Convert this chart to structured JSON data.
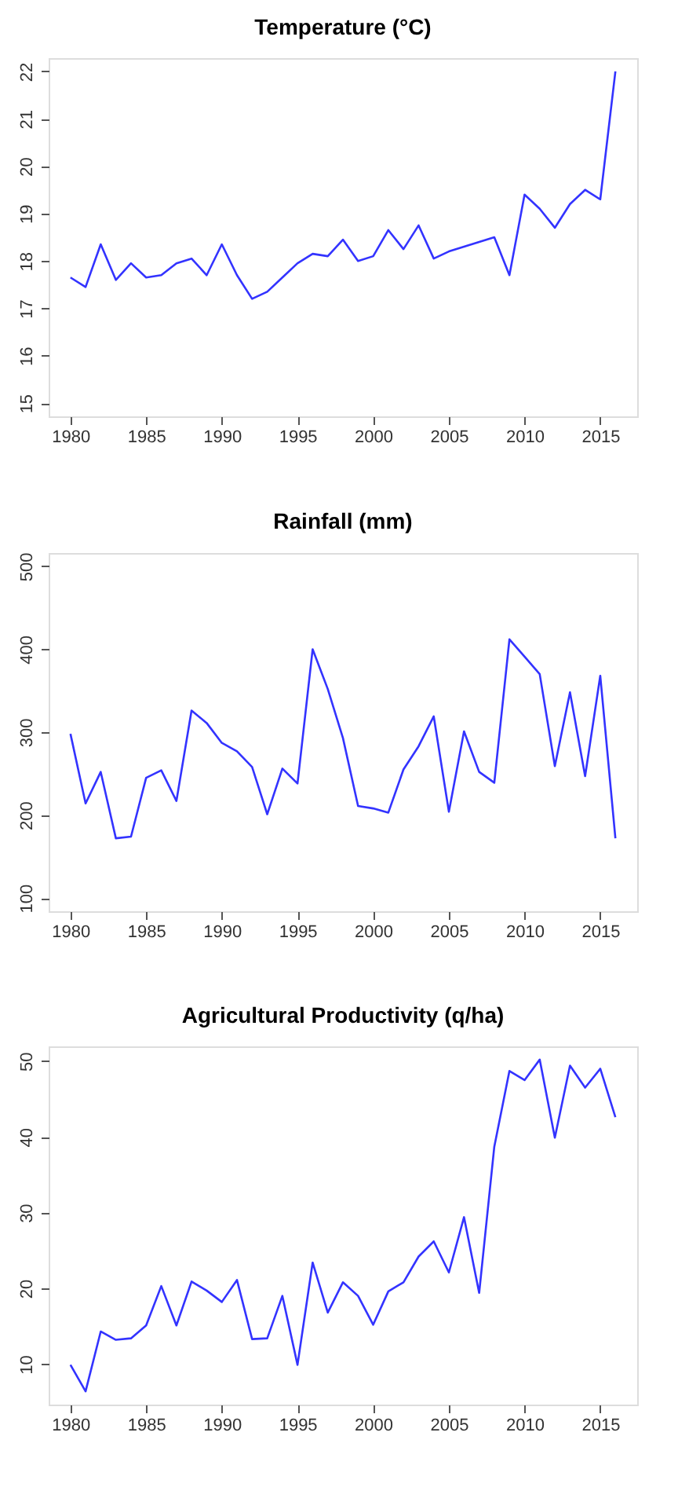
{
  "chart_data": [
    {
      "type": "line",
      "title": "Temperature (°C)",
      "x": [
        1980,
        1981,
        1982,
        1983,
        1984,
        1985,
        1986,
        1987,
        1988,
        1989,
        1990,
        1991,
        1992,
        1993,
        1994,
        1995,
        1996,
        1997,
        1998,
        1999,
        2000,
        2001,
        2002,
        2003,
        2004,
        2005,
        2006,
        2007,
        2008,
        2009,
        2010,
        2011,
        2012,
        2013,
        2014,
        2015,
        2016
      ],
      "series": [
        {
          "color": "#3333ff",
          "values": [
            17.65,
            17.45,
            18.35,
            17.6,
            17.95,
            17.65,
            17.7,
            17.95,
            18.05,
            17.7,
            18.35,
            17.7,
            17.2,
            17.35,
            17.65,
            17.95,
            18.15,
            18.1,
            18.45,
            18.0,
            18.1,
            18.65,
            18.25,
            18.75,
            18.05,
            18.2,
            18.3,
            18.4,
            18.5,
            17.7,
            19.4,
            19.1,
            18.7,
            19.2,
            19.5,
            19.3,
            22.0
          ]
        }
      ],
      "xlim": [
        1978.56,
        2017.44
      ],
      "xticks": [
        1980,
        1985,
        1990,
        1995,
        2000,
        2005,
        2010,
        2015
      ],
      "ylim": [
        14.72,
        22.28
      ],
      "yticks": [
        15,
        16,
        17,
        18,
        19,
        20,
        21,
        22
      ],
      "grid": false,
      "marker": "none",
      "line_style": "solid"
    },
    {
      "type": "line",
      "title": "Rainfall (mm)",
      "x": [
        1980,
        1981,
        1982,
        1983,
        1984,
        1985,
        1986,
        1987,
        1988,
        1989,
        1990,
        1991,
        1992,
        1993,
        1994,
        1995,
        1996,
        1997,
        1998,
        1999,
        2000,
        2001,
        2002,
        2003,
        2004,
        2005,
        2006,
        2007,
        2008,
        2009,
        2010,
        2011,
        2012,
        2013,
        2014,
        2015,
        2016
      ],
      "series": [
        {
          "color": "#3333ff",
          "values": [
            298,
            214,
            252,
            172,
            174,
            245,
            254,
            217,
            326,
            311,
            287,
            277,
            258,
            201,
            256,
            238,
            400,
            352,
            293,
            211,
            208,
            203,
            255,
            283,
            319,
            204,
            301,
            252,
            239,
            412,
            391,
            370,
            259,
            348,
            247,
            368,
            172
          ]
        }
      ],
      "xlim": [
        1978.56,
        2017.44
      ],
      "xticks": [
        1980,
        1985,
        1990,
        1995,
        2000,
        2005,
        2010,
        2015
      ],
      "ylim": [
        84,
        516
      ],
      "yticks": [
        100,
        200,
        300,
        400,
        500
      ],
      "grid": false,
      "marker": "none",
      "line_style": "solid"
    },
    {
      "type": "line",
      "title": "Agricultural Productivity (q/ha)",
      "x": [
        1980,
        1981,
        1982,
        1983,
        1984,
        1985,
        1986,
        1987,
        1988,
        1989,
        1990,
        1991,
        1992,
        1993,
        1994,
        1995,
        1996,
        1997,
        1998,
        1999,
        2000,
        2001,
        2002,
        2003,
        2004,
        2005,
        2006,
        2007,
        2008,
        2009,
        2010,
        2011,
        2012,
        2013,
        2014,
        2015,
        2016
      ],
      "series": [
        {
          "color": "#3333ff",
          "values": [
            9.9,
            6.4,
            14.3,
            13.2,
            13.4,
            15.1,
            20.3,
            15.1,
            20.9,
            19.7,
            18.2,
            21.1,
            13.3,
            13.4,
            19.0,
            9.9,
            23.4,
            16.8,
            20.8,
            19.0,
            15.2,
            19.6,
            20.8,
            24.2,
            26.2,
            22.1,
            29.4,
            19.4,
            38.7,
            48.7,
            47.5,
            50.2,
            39.9,
            49.4,
            46.5,
            49.0,
            42.6
          ]
        }
      ],
      "xlim": [
        1978.56,
        2017.44
      ],
      "xticks": [
        1980,
        1985,
        1990,
        1995,
        2000,
        2005,
        2010,
        2015
      ],
      "ylim": [
        4.65,
        51.95
      ],
      "yticks": [
        10,
        20,
        30,
        40,
        50
      ],
      "grid": false,
      "marker": "none",
      "line_style": "solid"
    }
  ]
}
